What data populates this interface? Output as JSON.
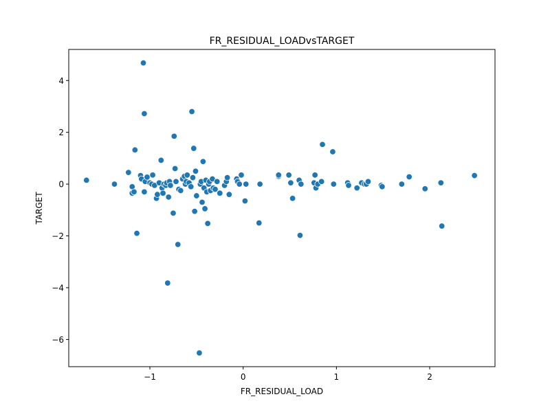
{
  "chart_data": {
    "type": "scatter",
    "title": "FR_RESIDUAL_LOADvsTARGET",
    "xlabel": "FR_RESIDUAL_LOAD",
    "ylabel": "TARGET",
    "xlim": [
      -1.87,
      2.7
    ],
    "ylim": [
      -7.05,
      5.2
    ],
    "x_ticks": [
      -1,
      0,
      1,
      2
    ],
    "x_tick_labels": [
      "−1",
      "0",
      "1",
      "2"
    ],
    "y_ticks": [
      4,
      2,
      0,
      -2,
      -4,
      -6
    ],
    "y_tick_labels": [
      "4",
      "2",
      "0",
      "−2",
      "−4",
      "−6"
    ],
    "grid": false,
    "legend": "none",
    "marker_color": "#1f77b4",
    "marker_edge_color": "#ffffff",
    "points": [
      [
        -1.68,
        0.15
      ],
      [
        -1.38,
        0.0
      ],
      [
        -1.23,
        0.45
      ],
      [
        -1.19,
        -0.35
      ],
      [
        -1.19,
        -0.1
      ],
      [
        -1.17,
        -0.3
      ],
      [
        -1.16,
        1.32
      ],
      [
        -1.14,
        -1.9
      ],
      [
        -1.1,
        0.33
      ],
      [
        -1.09,
        0.2
      ],
      [
        -1.07,
        4.68
      ],
      [
        -1.06,
        -0.3
      ],
      [
        -1.06,
        2.72
      ],
      [
        -1.05,
        0.1
      ],
      [
        -1.03,
        0.27
      ],
      [
        -1.0,
        0.05
      ],
      [
        -0.98,
        0.0
      ],
      [
        -0.97,
        0.35
      ],
      [
        -0.95,
        -0.05
      ],
      [
        -0.93,
        -0.55
      ],
      [
        -0.92,
        -0.4
      ],
      [
        -0.9,
        0.05
      ],
      [
        -0.88,
        0.92
      ],
      [
        -0.87,
        -0.15
      ],
      [
        -0.86,
        -0.35
      ],
      [
        -0.85,
        0.0
      ],
      [
        -0.83,
        -0.05
      ],
      [
        -0.82,
        0.05
      ],
      [
        -0.81,
        -3.82
      ],
      [
        -0.8,
        -0.5
      ],
      [
        -0.79,
        0.1
      ],
      [
        -0.78,
        -0.05
      ],
      [
        -0.75,
        -1.12
      ],
      [
        -0.74,
        1.85
      ],
      [
        -0.73,
        0.6
      ],
      [
        -0.72,
        0.1
      ],
      [
        -0.7,
        -2.33
      ],
      [
        -0.69,
        -0.2
      ],
      [
        -0.67,
        -0.25
      ],
      [
        -0.65,
        0.2
      ],
      [
        -0.63,
        0.3
      ],
      [
        -0.62,
        0.0
      ],
      [
        -0.61,
        0.1
      ],
      [
        -0.6,
        0.35
      ],
      [
        -0.58,
        0.05
      ],
      [
        -0.56,
        -0.1
      ],
      [
        -0.55,
        2.8
      ],
      [
        -0.54,
        0.25
      ],
      [
        -0.53,
        1.38
      ],
      [
        -0.52,
        -1.05
      ],
      [
        -0.51,
        0.5
      ],
      [
        -0.5,
        -0.45
      ],
      [
        -0.47,
        -6.52
      ],
      [
        -0.46,
        0.0
      ],
      [
        -0.45,
        0.1
      ],
      [
        -0.44,
        -0.7
      ],
      [
        -0.43,
        0.87
      ],
      [
        -0.42,
        -0.15
      ],
      [
        -0.41,
        -0.95
      ],
      [
        -0.4,
        0.15
      ],
      [
        -0.39,
        -0.3
      ],
      [
        -0.38,
        -1.52
      ],
      [
        -0.37,
        0.0
      ],
      [
        -0.36,
        0.1
      ],
      [
        -0.35,
        -0.25
      ],
      [
        -0.33,
        0.2
      ],
      [
        -0.32,
        -0.15
      ],
      [
        -0.3,
        -0.2
      ],
      [
        -0.28,
        0.1
      ],
      [
        -0.25,
        -0.35
      ],
      [
        -0.2,
        -0.05
      ],
      [
        -0.18,
        0.1
      ],
      [
        -0.17,
        0.25
      ],
      [
        -0.15,
        -0.4
      ],
      [
        -0.07,
        0.2
      ],
      [
        -0.06,
        0.1
      ],
      [
        -0.04,
        0.0
      ],
      [
        -0.02,
        0.35
      ],
      [
        0.02,
        -0.65
      ],
      [
        0.03,
        0.0
      ],
      [
        0.17,
        -1.5
      ],
      [
        0.18,
        0.0
      ],
      [
        0.38,
        0.3
      ],
      [
        0.38,
        0.35
      ],
      [
        0.49,
        0.35
      ],
      [
        0.51,
        0.05
      ],
      [
        0.53,
        -0.55
      ],
      [
        0.6,
        0.15
      ],
      [
        0.61,
        -1.98
      ],
      [
        0.62,
        0.0
      ],
      [
        0.76,
        0.05
      ],
      [
        0.77,
        0.35
      ],
      [
        0.78,
        -0.15
      ],
      [
        0.8,
        0.0
      ],
      [
        0.84,
        0.1
      ],
      [
        0.85,
        1.53
      ],
      [
        0.96,
        1.25
      ],
      [
        0.97,
        0.0
      ],
      [
        1.12,
        0.05
      ],
      [
        1.13,
        -0.05
      ],
      [
        1.22,
        -0.15
      ],
      [
        1.27,
        0.05
      ],
      [
        1.3,
        0.0
      ],
      [
        1.32,
        0.0
      ],
      [
        1.34,
        0.1
      ],
      [
        1.48,
        -0.05
      ],
      [
        1.49,
        -0.1
      ],
      [
        1.7,
        0.0
      ],
      [
        1.78,
        0.28
      ],
      [
        1.95,
        -0.18
      ],
      [
        2.12,
        0.05
      ],
      [
        2.13,
        -1.62
      ],
      [
        2.48,
        0.33
      ]
    ]
  }
}
